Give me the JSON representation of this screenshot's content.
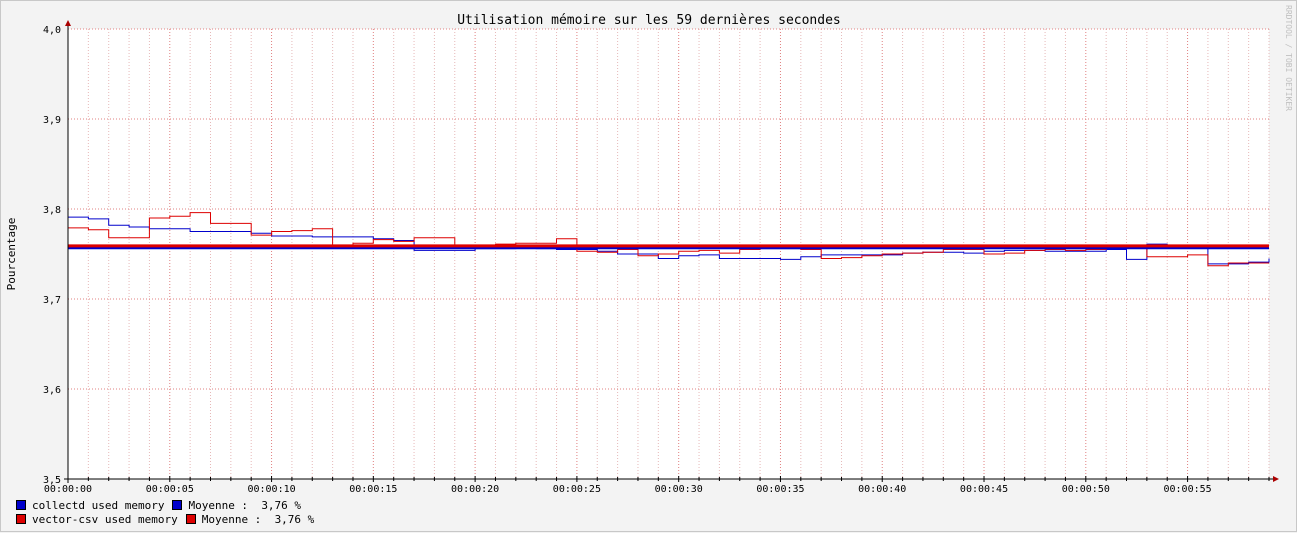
{
  "chart_data": {
    "type": "line",
    "title": "Utilisation mémoire sur les 59 dernières secondes",
    "ylabel": "Pourcentage",
    "watermark": "RRDTOOL / TOBI OETIKER",
    "ylim": [
      3.5,
      4.0
    ],
    "xlim_seconds": [
      0,
      59
    ],
    "yticks": [
      "3,5",
      "3,6",
      "3,7",
      "3,8",
      "3,9",
      "4,0"
    ],
    "xticks": [
      "00:00:00",
      "00:00:05",
      "00:00:10",
      "00:00:15",
      "00:00:20",
      "00:00:25",
      "00:00:30",
      "00:00:35",
      "00:00:40",
      "00:00:45",
      "00:00:50",
      "00:00:55"
    ],
    "grid": true,
    "colors": {
      "background": "#ffffff",
      "grid_major": "#e08080",
      "grid_minor": "#e6b8b8",
      "axis": "#000000",
      "arrow": "#aa0000"
    },
    "series": [
      {
        "name": "collectd used memory",
        "color": "#0000cc",
        "step": true,
        "average": 3.757,
        "values": [
          3.791,
          3.789,
          3.782,
          3.78,
          3.778,
          3.778,
          3.775,
          3.775,
          3.775,
          3.773,
          3.77,
          3.77,
          3.769,
          3.769,
          3.769,
          3.767,
          3.765,
          3.754,
          3.754,
          3.754,
          3.756,
          3.756,
          3.757,
          3.756,
          3.755,
          3.755,
          3.753,
          3.75,
          3.75,
          3.745,
          3.748,
          3.749,
          3.745,
          3.745,
          3.745,
          3.744,
          3.747,
          3.749,
          3.749,
          3.749,
          3.749,
          3.751,
          3.752,
          3.752,
          3.751,
          3.753,
          3.754,
          3.754,
          3.753,
          3.753,
          3.753,
          3.755,
          3.744,
          3.761,
          3.76,
          3.757,
          3.739,
          3.739,
          3.741,
          3.745
        ]
      },
      {
        "name": "vector-csv used memory",
        "color": "#dd0000",
        "step": true,
        "average": 3.759,
        "values": [
          3.779,
          3.777,
          3.768,
          3.768,
          3.79,
          3.792,
          3.796,
          3.784,
          3.784,
          3.771,
          3.775,
          3.776,
          3.778,
          3.759,
          3.762,
          3.766,
          3.764,
          3.768,
          3.768,
          3.76,
          3.76,
          3.761,
          3.762,
          3.762,
          3.767,
          3.753,
          3.752,
          3.755,
          3.748,
          3.75,
          3.753,
          3.754,
          3.751,
          3.755,
          3.756,
          3.756,
          3.755,
          3.745,
          3.746,
          3.748,
          3.75,
          3.751,
          3.752,
          3.755,
          3.755,
          3.75,
          3.751,
          3.754,
          3.755,
          3.754,
          3.755,
          3.757,
          3.759,
          3.747,
          3.747,
          3.749,
          3.737,
          3.74,
          3.74,
          3.74
        ]
      }
    ]
  },
  "legend": [
    {
      "name": "collectd used memory",
      "color": "#0000cc",
      "avg_label": "Moyenne :",
      "avg_value": "3,76 %"
    },
    {
      "name": "vector-csv used memory",
      "color": "#dd0000",
      "avg_label": "Moyenne :",
      "avg_value": "3,76 %"
    }
  ]
}
